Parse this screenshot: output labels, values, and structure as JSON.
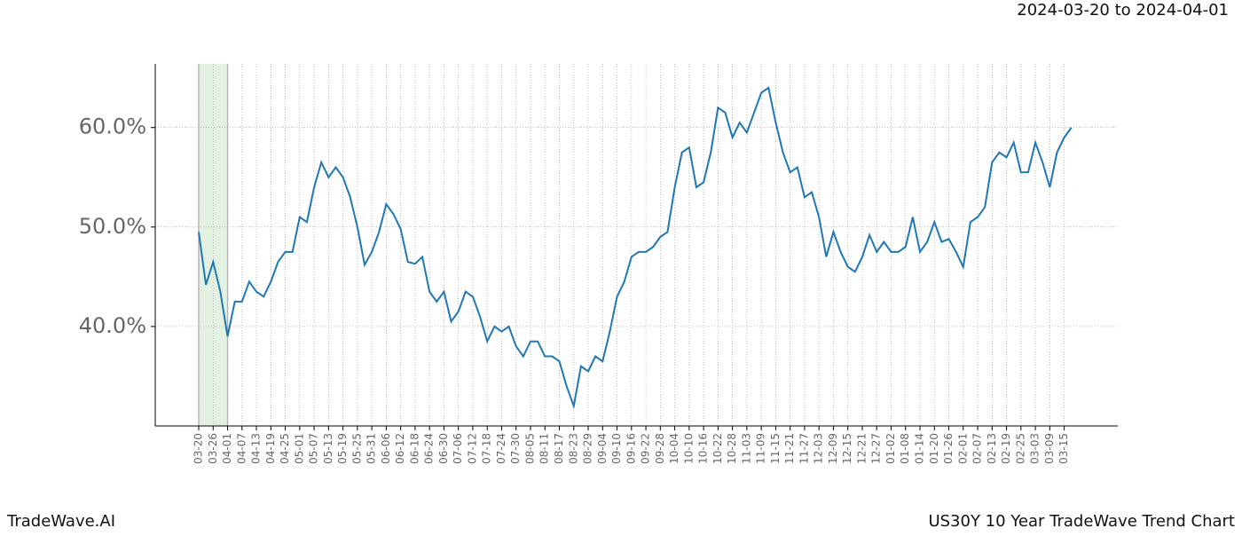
{
  "chart_data": {
    "type": "line",
    "date_range": "2024-03-20 to 2024-04-01",
    "brand": "TradeWave.AI",
    "title": "US30Y 10 Year TradeWave Trend Chart",
    "categories": [
      "03-20",
      null,
      "03-26",
      null,
      "04-01",
      null,
      "04-07",
      null,
      "04-13",
      null,
      "04-19",
      null,
      "04-25",
      null,
      "05-01",
      null,
      "05-07",
      null,
      "05-13",
      null,
      "05-19",
      null,
      "05-25",
      null,
      "05-31",
      null,
      "06-06",
      null,
      "06-12",
      null,
      "06-18",
      null,
      "06-24",
      null,
      "06-30",
      null,
      "07-06",
      null,
      "07-12",
      null,
      "07-18",
      null,
      "07-24",
      null,
      "07-30",
      null,
      "08-05",
      null,
      "08-11",
      null,
      "08-17",
      null,
      "08-23",
      null,
      "08-29",
      null,
      "09-04",
      null,
      "09-10",
      null,
      "09-16",
      null,
      "09-22",
      null,
      "09-28",
      null,
      "10-04",
      null,
      "10-10",
      null,
      "10-16",
      null,
      "10-22",
      null,
      "10-28",
      null,
      "11-03",
      null,
      "11-09",
      null,
      "11-15",
      null,
      "11-21",
      null,
      "11-27",
      null,
      "12-03",
      null,
      "12-09",
      null,
      "12-15",
      null,
      "12-21",
      null,
      "12-27",
      null,
      "01-02",
      null,
      "01-08",
      null,
      "01-14",
      null,
      "01-20",
      null,
      "01-26",
      null,
      "02-01",
      null,
      "02-07",
      null,
      "02-13",
      null,
      "02-19",
      null,
      "02-25",
      null,
      "03-03",
      null,
      "03-09",
      null,
      "03-15",
      null
    ],
    "series": [
      {
        "color": "#1f77b4",
        "values": [
          49.5,
          44.2,
          46.5,
          43.5,
          39,
          42.5,
          42.5,
          44.5,
          43.5,
          43,
          44.5,
          46.5,
          47.5,
          47.5,
          51,
          50.5,
          54,
          56.5,
          55,
          56,
          55,
          53,
          50,
          46.2,
          47.5,
          49.5,
          52.3,
          51.3,
          49.8,
          46.5,
          46.3,
          47,
          43.5,
          42.5,
          43.5,
          40.5,
          41.5,
          43.5,
          43,
          41,
          38.5,
          40,
          39.5,
          40,
          38,
          37,
          38.5,
          38.5,
          37,
          37,
          36.5,
          34,
          32,
          36,
          35.5,
          37,
          36.5,
          39.5,
          43,
          44.5,
          47,
          47.5,
          47.5,
          48,
          49,
          49.5,
          54,
          57.5,
          58,
          54,
          54.5,
          57.5,
          62,
          61.5,
          59,
          60.5,
          59.5,
          61.5,
          63.5,
          64,
          60.5,
          57.5,
          55.5,
          56,
          53,
          53.5,
          51,
          47,
          49.5,
          47.5,
          46,
          45.5,
          47,
          49.2,
          47.5,
          48.5,
          47.5,
          47.5,
          48,
          51,
          47.5,
          48.5,
          50.5,
          48.5,
          48.8,
          47.5,
          46,
          50.5,
          51,
          52,
          56.5,
          57.5,
          57,
          58.5,
          55.5,
          55.5,
          58.5,
          56.5,
          54,
          57.5,
          59,
          60
        ]
      }
    ],
    "highlight": {
      "start": "03-20",
      "end": "04-01",
      "color": "#e3f1e3"
    },
    "ylim": [
      30,
      66.4
    ],
    "yticks": [
      {
        "value": 40,
        "label": "40.0%"
      },
      {
        "value": 50,
        "label": "50.0%"
      },
      {
        "value": 60,
        "label": "60.0%"
      }
    ],
    "grid": true
  }
}
